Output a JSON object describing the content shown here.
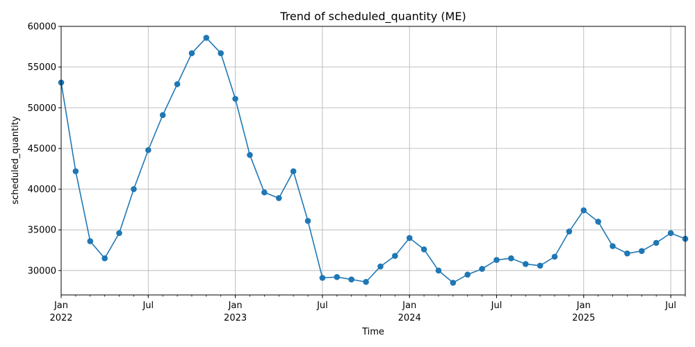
{
  "chart_data": {
    "type": "line",
    "title": "Trend of scheduled_quantity (ME)",
    "xlabel": "Time",
    "ylabel": "scheduled_quantity",
    "ylim": [
      27000,
      60000
    ],
    "xlim": [
      "2022-01",
      "2025-08"
    ],
    "grid": true,
    "color": "#1f77b4",
    "x_major_ticks": [
      {
        "date": "2022-01",
        "label": "Jan",
        "year": "2022"
      },
      {
        "date": "2022-07",
        "label": "Jul",
        "year": ""
      },
      {
        "date": "2023-01",
        "label": "Jan",
        "year": "2023"
      },
      {
        "date": "2023-07",
        "label": "Jul",
        "year": ""
      },
      {
        "date": "2024-01",
        "label": "Jan",
        "year": "2024"
      },
      {
        "date": "2024-07",
        "label": "Jul",
        "year": ""
      },
      {
        "date": "2025-01",
        "label": "Jan",
        "year": "2025"
      },
      {
        "date": "2025-07",
        "label": "Jul",
        "year": ""
      }
    ],
    "y_ticks": [
      30000,
      35000,
      40000,
      45000,
      50000,
      55000,
      60000
    ],
    "series": [
      {
        "x": [
          "2022-01",
          "2022-02",
          "2022-03",
          "2022-04",
          "2022-05",
          "2022-06",
          "2022-07",
          "2022-08",
          "2022-09",
          "2022-10",
          "2022-11",
          "2022-12",
          "2023-01",
          "2023-02",
          "2023-03",
          "2023-04",
          "2023-05",
          "2023-06",
          "2023-07",
          "2023-08",
          "2023-09",
          "2023-10",
          "2023-11",
          "2023-12",
          "2024-01",
          "2024-02",
          "2024-03",
          "2024-04",
          "2024-05",
          "2024-06",
          "2024-07",
          "2024-08",
          "2024-09",
          "2024-10",
          "2024-11",
          "2024-12",
          "2025-01",
          "2025-02",
          "2025-03",
          "2025-04",
          "2025-05",
          "2025-06",
          "2025-07",
          "2025-08"
        ],
        "values": [
          53100,
          42200,
          33600,
          31500,
          34600,
          40000,
          44800,
          49100,
          52900,
          56700,
          58600,
          56700,
          51100,
          44200,
          39600,
          38900,
          42200,
          36100,
          29100,
          29200,
          28900,
          28600,
          30500,
          31800,
          34000,
          32600,
          30000,
          28500,
          29500,
          30200,
          31300,
          31500,
          30800,
          30600,
          31700,
          34800,
          37400,
          36000,
          33000,
          32100,
          32400,
          33400,
          34600,
          33900
        ]
      }
    ]
  }
}
